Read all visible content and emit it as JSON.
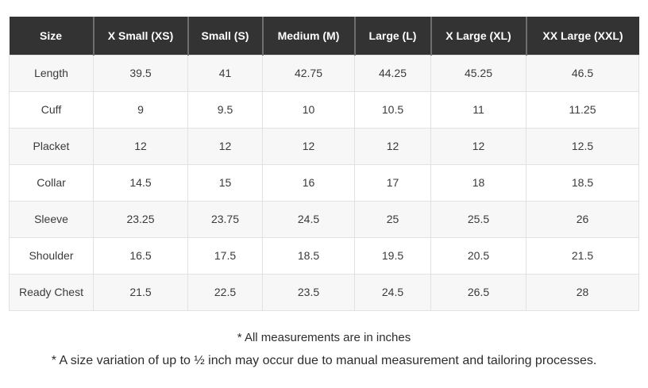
{
  "chart_data": {
    "type": "table",
    "columns": [
      "Size",
      "X Small (XS)",
      "Small (S)",
      "Medium (M)",
      "Large (L)",
      "X Large (XL)",
      "XX Large (XXL)"
    ],
    "rows": [
      [
        "Length",
        "39.5",
        "41",
        "42.75",
        "44.25",
        "45.25",
        "46.5"
      ],
      [
        "Cuff",
        "9",
        "9.5",
        "10",
        "10.5",
        "11",
        "11.25"
      ],
      [
        "Placket",
        "12",
        "12",
        "12",
        "12",
        "12",
        "12.5"
      ],
      [
        "Collar",
        "14.5",
        "15",
        "16",
        "17",
        "18",
        "18.5"
      ],
      [
        "Sleeve",
        "23.25",
        "23.75",
        "24.5",
        "25",
        "25.5",
        "26"
      ],
      [
        "Shoulder",
        "16.5",
        "17.5",
        "18.5",
        "19.5",
        "20.5",
        "21.5"
      ],
      [
        "Ready Chest",
        "21.5",
        "22.5",
        "23.5",
        "24.5",
        "26.5",
        "28"
      ]
    ],
    "notes": [
      "* All measurements are in inches",
      "* A size variation of up to ½ inch may occur due to manual measurement and tailoring processes."
    ],
    "layout": {
      "grid": true,
      "header_position": "top"
    },
    "colors": {
      "header_background": "#333333",
      "header_text": "#ffffff",
      "header_separator": "#6e6e6e",
      "row_alternate_background": "#f7f7f7",
      "row_background": "#ffffff",
      "cell_border": "#e2e2e2",
      "body_text": "#3a3a3a",
      "note_text": "#2d2d2d"
    }
  }
}
